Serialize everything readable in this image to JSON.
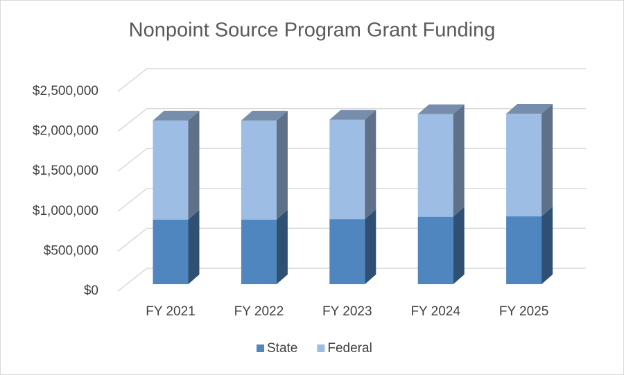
{
  "chart_data": {
    "type": "bar3d_stacked",
    "title": "Nonpoint Source Program Grant Funding",
    "categories": [
      "FY 2021",
      "FY 2022",
      "FY 2023",
      "FY 2024",
      "FY 2025"
    ],
    "series": [
      {
        "name": "State",
        "color": "#4f86c0",
        "values": [
          810000,
          810000,
          815000,
          845000,
          850000
        ]
      },
      {
        "name": "Federal",
        "color": "#9dbde4",
        "values": [
          1240000,
          1240000,
          1245000,
          1285000,
          1285000
        ]
      }
    ],
    "ylim": [
      0,
      2500000
    ],
    "yticks": [
      {
        "value": 0,
        "label": "$0"
      },
      {
        "value": 500000,
        "label": "$500,000"
      },
      {
        "value": 1000000,
        "label": "$1,000,000"
      },
      {
        "value": 1500000,
        "label": "$1,500,000"
      },
      {
        "value": 2000000,
        "label": "$2,000,000"
      },
      {
        "value": 2500000,
        "label": "$2,500,000"
      }
    ],
    "grid": true,
    "legend": "bottom"
  }
}
